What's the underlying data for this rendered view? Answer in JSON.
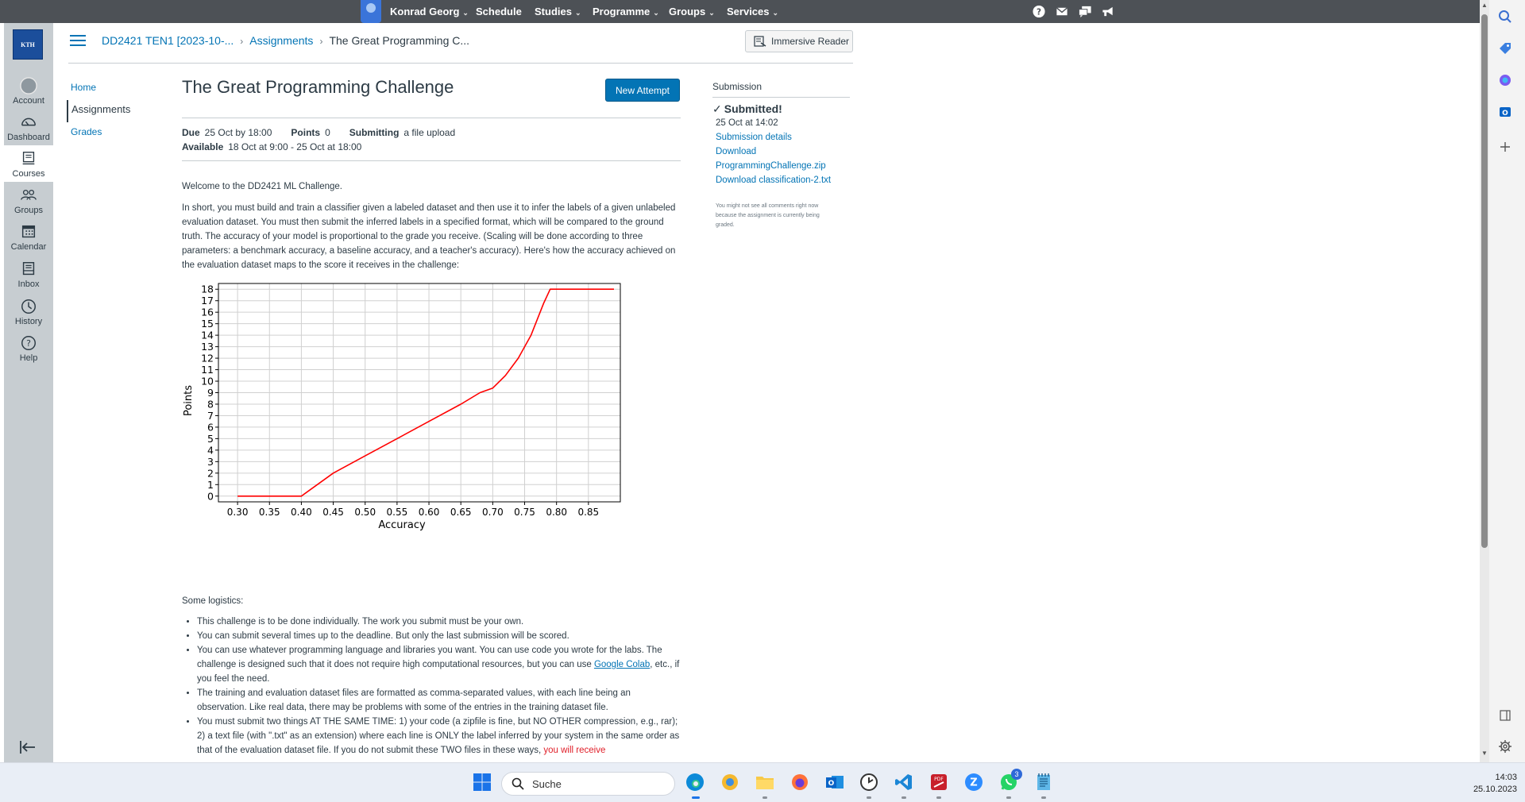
{
  "topbar": {
    "user_name": "Konrad Georg",
    "items": [
      "Schedule",
      "Studies",
      "Programme",
      "Groups",
      "Services"
    ],
    "dropdown_flags": [
      false,
      true,
      true,
      true,
      true
    ]
  },
  "global_nav": {
    "logo_text": "KTH",
    "items": [
      {
        "label": "Account",
        "icon": "account-icon"
      },
      {
        "label": "Dashboard",
        "icon": "dashboard-icon"
      },
      {
        "label": "Courses",
        "icon": "courses-icon"
      },
      {
        "label": "Groups",
        "icon": "groups-icon"
      },
      {
        "label": "Calendar",
        "icon": "calendar-icon"
      },
      {
        "label": "Inbox",
        "icon": "inbox-icon"
      },
      {
        "label": "History",
        "icon": "history-icon"
      },
      {
        "label": "Help",
        "icon": "help-icon"
      }
    ],
    "active_item": "Courses"
  },
  "breadcrumb": {
    "course": "DD2421 TEN1 [2023-10-...",
    "section": "Assignments",
    "current": "The Great Programming C..."
  },
  "immersive_reader": "Immersive Reader",
  "course_nav": [
    "Home",
    "Assignments",
    "Grades"
  ],
  "course_nav_active": "Assignments",
  "assignment": {
    "title": "The Great Programming Challenge",
    "new_attempt": "New Attempt",
    "due_label": "Due",
    "due_value": "25 Oct by 18:00",
    "points_label": "Points",
    "points_value": "0",
    "submitting_label": "Submitting",
    "submitting_value": "a file upload",
    "available_label": "Available",
    "available_value": "18 Oct at 9:00 - 25 Oct at 18:00"
  },
  "content": {
    "welcome": "Welcome to the DD2421 ML Challenge.",
    "intro": "In short, you must build and train a classifier given a labeled dataset and then use it to infer the labels of a given unlabeled evaluation dataset. You must then submit the inferred labels in a specified format, which will be compared to the ground truth. The accuracy of your model is proportional to the grade you receive. (Scaling will be done according to three parameters: a benchmark accuracy, a baseline accuracy, and a teacher's accuracy). Here's how the accuracy achieved on the evaluation dataset maps to the score it receives in the challenge:",
    "logistics_heading": "Some logistics:",
    "bullet_1": "This challenge is to be done individually. The work you submit must be your own.",
    "bullet_2": "You can submit several times up to the deadline. But only the last submission will be scored.",
    "bullet_3_pre": "You can use whatever programming language and libraries you want.  You can use code you wrote for the labs. The challenge is designed such that it does not require high computational resources, but you can use ",
    "bullet_3_link": "Google Colab",
    "bullet_3_post": ", etc., if you feel the need.",
    "bullet_4": "The training and evaluation dataset files are formatted as comma-separated values, with each line being an observation. Like real data, there may be problems with some of the entries in the training dataset file.",
    "bullet_5_pre": "You must submit two things AT THE SAME TIME: 1) your code (a zipfile is fine, but NO OTHER compression, e.g., rar); 2) a text file (with \".txt\" as an extension) where each line is ONLY the label inferred by your system in the same order as that of the evaluation dataset file. If you do not submit these TWO files in these ways, ",
    "bullet_5_red": "you will receive"
  },
  "chart_data": {
    "type": "line",
    "title": "",
    "xlabel": "Accuracy",
    "ylabel": "Points",
    "xlim": [
      0.27,
      0.9
    ],
    "ylim": [
      -0.5,
      18.5
    ],
    "xticks": [
      "0.30",
      "0.35",
      "0.40",
      "0.45",
      "0.50",
      "0.55",
      "0.60",
      "0.65",
      "0.70",
      "0.75",
      "0.80",
      "0.85"
    ],
    "yticks": [
      "0",
      "1",
      "2",
      "3",
      "4",
      "5",
      "6",
      "7",
      "8",
      "9",
      "10",
      "11",
      "12",
      "13",
      "14",
      "15",
      "16",
      "17",
      "18"
    ],
    "grid": true,
    "series": [
      {
        "color": "#ff0000",
        "x": [
          0.3,
          0.4,
          0.45,
          0.5,
          0.55,
          0.6,
          0.65,
          0.68,
          0.7,
          0.72,
          0.74,
          0.76,
          0.78,
          0.79,
          0.8,
          0.89
        ],
        "y": [
          0,
          0,
          2.0,
          3.5,
          5.0,
          6.5,
          8.0,
          9.0,
          9.4,
          10.5,
          12.0,
          14.0,
          16.8,
          18.0,
          18.0,
          18.0
        ]
      }
    ]
  },
  "submission": {
    "heading": "Submission",
    "status": "Submitted!",
    "date": "25 Oct at 14:02",
    "details": "Submission details",
    "download": "Download",
    "file_1": "ProgrammingChallenge.zip",
    "file_2": "Download classification-2.txt",
    "note": "You might not see all comments right now because the assignment is currently being graded."
  },
  "taskbar": {
    "search_placeholder": "Suche",
    "time": "14:03",
    "date": "25.10.2023",
    "whatsapp_badge": "3"
  }
}
